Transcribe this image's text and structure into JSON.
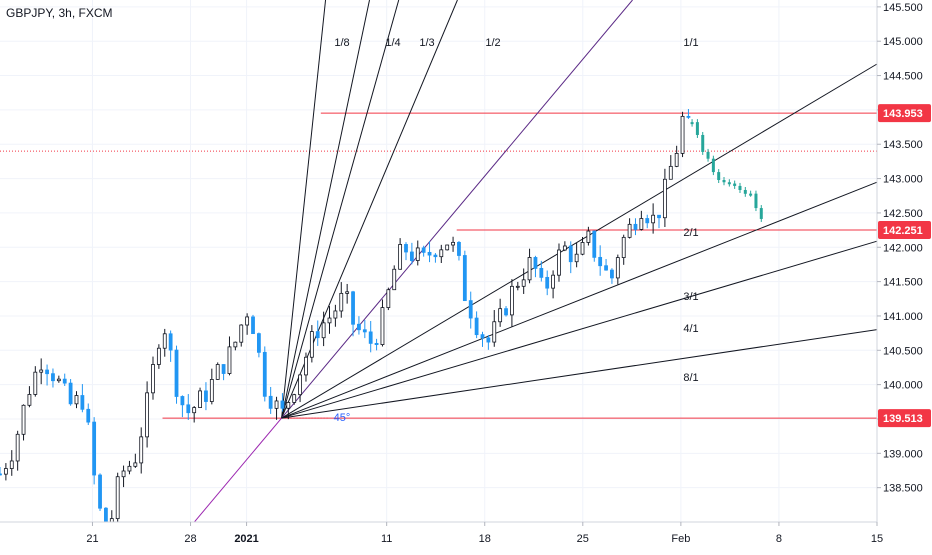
{
  "header": {
    "symbol_title": "GBPJPY, 3h, FXCM"
  },
  "colors": {
    "up_candle": "#131722",
    "down_candle": "#2196f3",
    "forecast": "#26a69a",
    "fan_line": "#131722",
    "one_to_one_line": "#5b2a86",
    "extension_line": "#9c27b0",
    "level_line": "#f23645",
    "current_price_line": "#f23645",
    "price_tag_bg": "#f23645",
    "price_tag_text": "#ffffff",
    "angle_label": "#2962ff",
    "axis_text": "#131722",
    "grid": "#f0f3fa"
  },
  "chart_data": {
    "type": "candlestick",
    "title": "GBPJPY, 3h, FXCM",
    "x_ticks": [
      {
        "label": "21",
        "day": -11
      },
      {
        "label": "28",
        "day": -4
      },
      {
        "label": "2021",
        "day": 0
      },
      {
        "label": "11",
        "day": 10
      },
      {
        "label": "18",
        "day": 17
      },
      {
        "label": "25",
        "day": 24
      },
      {
        "label": "Feb",
        "day": 31
      },
      {
        "label": "8",
        "day": 38
      },
      {
        "label": "15",
        "day": 45
      }
    ],
    "y_ticks": [
      "145.500",
      "145.000",
      "144.500",
      "144.000",
      "143.500",
      "143.000",
      "142.500",
      "142.000",
      "141.500",
      "141.000",
      "140.500",
      "140.000",
      "139.500",
      "139.000",
      "138.500"
    ],
    "ylim": [
      138.0,
      145.6
    ],
    "xlim_days": [
      -17.6,
      45
    ],
    "price_levels": [
      {
        "label": "143.953",
        "value": 143.953
      },
      {
        "label": "142.251",
        "value": 142.251
      },
      {
        "label": "139.513",
        "value": 139.513
      }
    ],
    "current_price": 143.4,
    "gann_fan": {
      "origin": {
        "day": 2.5,
        "price": 139.513
      },
      "angle_label": "45°",
      "lines": [
        {
          "label": "1/8",
          "slope": 1.94
        },
        {
          "label": "1/4",
          "slope": 0.97
        },
        {
          "label": "1/3",
          "slope": 0.728
        },
        {
          "label": "1/2",
          "slope": 0.485
        },
        {
          "label": "1/1",
          "slope": 0.243
        },
        {
          "label": "2/1",
          "slope": 0.1213
        },
        {
          "label": "3/1",
          "slope": 0.0808
        },
        {
          "label": "4/1",
          "slope": 0.0606
        },
        {
          "label": "8/1",
          "slope": 0.0303
        }
      ]
    },
    "price_path": [
      [
        -17.6,
        138.7
      ],
      [
        -16.6,
        139.1
      ],
      [
        -15.6,
        139.9
      ],
      [
        -14.6,
        140.4
      ],
      [
        -13.6,
        140.1
      ],
      [
        -12.6,
        139.7
      ],
      [
        -11.6,
        139.8
      ],
      [
        -10.6,
        138.2
      ],
      [
        -9.8,
        137.9
      ],
      [
        -9.0,
        138.7
      ],
      [
        -8.0,
        138.9
      ],
      [
        -7.2,
        139.6
      ],
      [
        -6.6,
        140.3
      ],
      [
        -6.0,
        141.0
      ],
      [
        -5.4,
        140.4
      ],
      [
        -4.8,
        139.8
      ],
      [
        -4.2,
        139.6
      ],
      [
        -3.6,
        139.7
      ],
      [
        -2.8,
        139.9
      ],
      [
        -2.0,
        140.2
      ],
      [
        -1.0,
        140.5
      ],
      [
        0.0,
        141.1
      ],
      [
        0.6,
        140.8
      ],
      [
        1.2,
        140.0
      ],
      [
        1.8,
        139.8
      ],
      [
        2.5,
        139.55
      ],
      [
        3.2,
        139.9
      ],
      [
        4.0,
        140.3
      ],
      [
        5.0,
        140.8
      ],
      [
        6.0,
        141.0
      ],
      [
        7.0,
        141.3
      ],
      [
        7.6,
        140.9
      ],
      [
        8.3,
        140.7
      ],
      [
        9.0,
        140.6
      ],
      [
        9.8,
        141.0
      ],
      [
        10.4,
        141.6
      ],
      [
        11.2,
        142.0
      ],
      [
        11.8,
        141.9
      ],
      [
        12.6,
        141.8
      ],
      [
        13.4,
        142.0
      ],
      [
        14.4,
        142.1
      ],
      [
        15.0,
        141.9
      ],
      [
        15.6,
        141.3
      ],
      [
        16.4,
        140.9
      ],
      [
        17.2,
        140.6
      ],
      [
        18.0,
        140.9
      ],
      [
        18.8,
        141.3
      ],
      [
        19.6,
        141.6
      ],
      [
        20.4,
        141.8
      ],
      [
        21.2,
        141.3
      ],
      [
        22.0,
        141.8
      ],
      [
        22.8,
        142.0
      ],
      [
        23.6,
        141.8
      ],
      [
        24.4,
        142.1
      ],
      [
        25.2,
        141.8
      ],
      [
        26.0,
        141.5
      ],
      [
        26.6,
        142.0
      ],
      [
        27.4,
        142.3
      ],
      [
        28.2,
        142.6
      ],
      [
        29.0,
        142.4
      ],
      [
        29.6,
        142.6
      ],
      [
        30.2,
        143.1
      ],
      [
        30.8,
        143.5
      ],
      [
        31.2,
        143.95
      ],
      [
        31.6,
        143.7
      ]
    ],
    "forecast_path": [
      [
        31.8,
        143.8
      ],
      [
        32.4,
        143.5
      ],
      [
        33.0,
        143.3
      ],
      [
        33.6,
        143.0
      ],
      [
        34.2,
        143.0
      ],
      [
        34.8,
        142.9
      ],
      [
        35.4,
        142.8
      ],
      [
        36.2,
        142.7
      ],
      [
        36.8,
        142.4
      ]
    ]
  }
}
